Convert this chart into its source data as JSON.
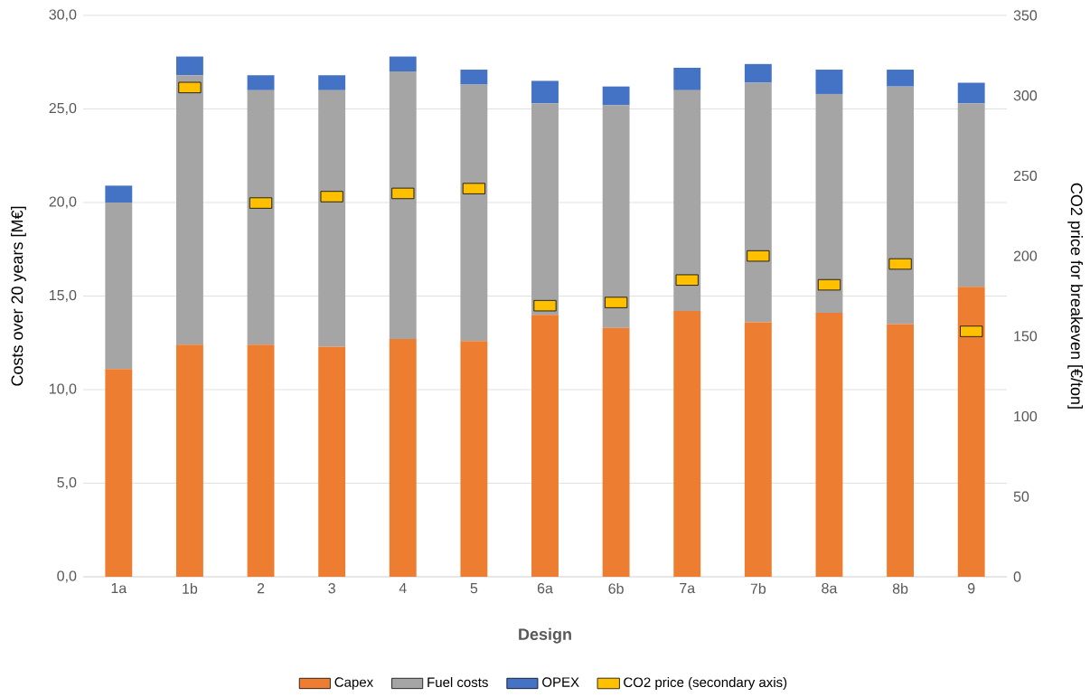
{
  "chart_data": {
    "type": "bar",
    "stacked": true,
    "xlabel": "Design",
    "ylabel": "Costs over 20 years [M€]",
    "y2label": "CO2 price for breakeven [€/ton]",
    "categories": [
      "1a",
      "1b",
      "2",
      "3",
      "4",
      "5",
      "6a",
      "6b",
      "7a",
      "7b",
      "8a",
      "8b",
      "9"
    ],
    "series": [
      {
        "name": "Capex",
        "color": "#ed7d31",
        "values": [
          11.1,
          12.4,
          12.4,
          12.3,
          12.7,
          12.6,
          14.0,
          13.3,
          14.2,
          13.6,
          14.1,
          13.5,
          15.5
        ]
      },
      {
        "name": "Fuel costs",
        "color": "#a5a5a5",
        "values": [
          8.9,
          14.4,
          13.6,
          13.7,
          14.3,
          13.7,
          11.3,
          11.9,
          11.8,
          12.8,
          11.7,
          12.7,
          9.8
        ]
      },
      {
        "name": "OPEX",
        "color": "#4472c4",
        "values": [
          0.9,
          1.0,
          0.8,
          0.8,
          0.8,
          0.8,
          1.2,
          1.0,
          1.2,
          1.0,
          1.3,
          0.9,
          1.1
        ]
      },
      {
        "name": "CO2 price (secondary axis)",
        "color": "#ffc000",
        "type": "scatter",
        "axis": "y2",
        "values": [
          null,
          305,
          233,
          237,
          239,
          242,
          169,
          171,
          185,
          200,
          182,
          195,
          153
        ]
      }
    ],
    "ylim": [
      0,
      30
    ],
    "yticks": [
      {
        "value": 0,
        "label": "0,0"
      },
      {
        "value": 5,
        "label": "5,0"
      },
      {
        "value": 10,
        "label": "10,0"
      },
      {
        "value": 15,
        "label": "15,0"
      },
      {
        "value": 20,
        "label": "20,0"
      },
      {
        "value": 25,
        "label": "25,0"
      },
      {
        "value": 30,
        "label": "30,0"
      }
    ],
    "y2lim": [
      0,
      350
    ],
    "y2ticks": [
      0,
      50,
      100,
      150,
      200,
      250,
      300,
      350
    ],
    "grid": "y",
    "legend": "bottom"
  }
}
